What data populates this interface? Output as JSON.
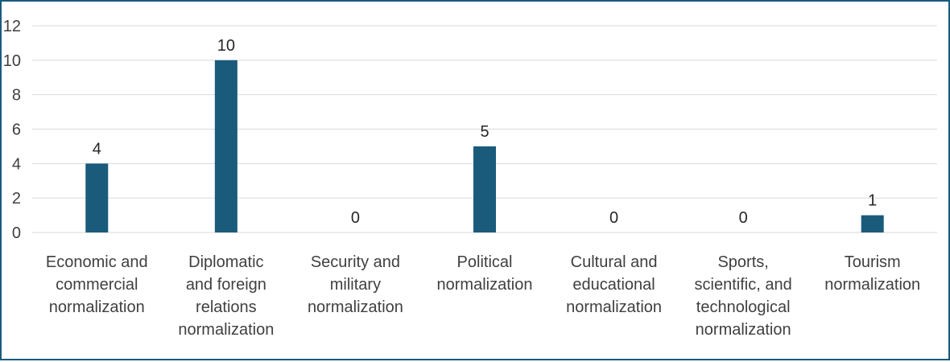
{
  "chart_data": {
    "type": "bar",
    "categories": [
      "Economic and commercial normalization",
      "Diplomatic and foreign relations normalization",
      "Security and military normalization",
      "Political normalization",
      "Cultural and educational normalization",
      "Sports, scientific, and technological normalization",
      "Tourism normalization"
    ],
    "category_lines": [
      [
        "Economic and",
        "commercial",
        "normalization"
      ],
      [
        "Diplomatic",
        "and foreign",
        "relations",
        "normalization"
      ],
      [
        "Security and",
        "military",
        "normalization"
      ],
      [
        "Political",
        "normalization"
      ],
      [
        "Cultural and",
        "educational",
        "normalization"
      ],
      [
        "Sports,",
        "scientific, and",
        "technological",
        "normalization"
      ],
      [
        "Tourism",
        "normalization"
      ]
    ],
    "values": [
      4,
      10,
      0,
      5,
      0,
      0,
      1
    ],
    "data_labels": [
      "4",
      "10",
      "0",
      "5",
      "0",
      "0",
      "1"
    ],
    "title": "",
    "xlabel": "",
    "ylabel": "",
    "ylim": [
      0,
      12
    ],
    "yticks": [
      0,
      2,
      4,
      6,
      8,
      10,
      12
    ],
    "grid": true,
    "bar_color": "#1a5b7c",
    "grid_color": "#d9d9d9"
  }
}
